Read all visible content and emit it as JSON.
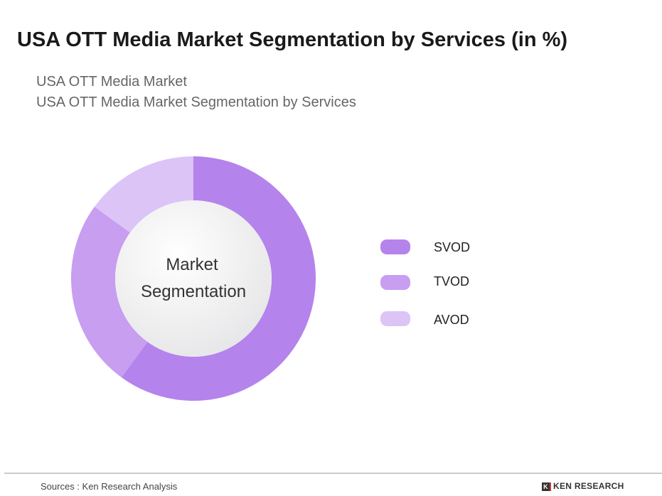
{
  "title": "USA OTT Media Market Segmentation by Services (in %)",
  "subtitle1": "USA OTT Media Market",
  "subtitle2": "USA OTT Media Market Segmentation by Services",
  "chart_data": {
    "type": "pie",
    "donut": true,
    "center_label": [
      "Market",
      "Segmentation"
    ],
    "categories": [
      "SVOD",
      "TVOD",
      "AVOD"
    ],
    "values": [
      60,
      25,
      15
    ],
    "colors": [
      "#b583ec",
      "#c79ef0",
      "#dcc4f7"
    ],
    "legend_position": "right"
  },
  "footer": {
    "source": "Sources : Ken Research Analysis",
    "logo": "KEN RESEARCH"
  }
}
